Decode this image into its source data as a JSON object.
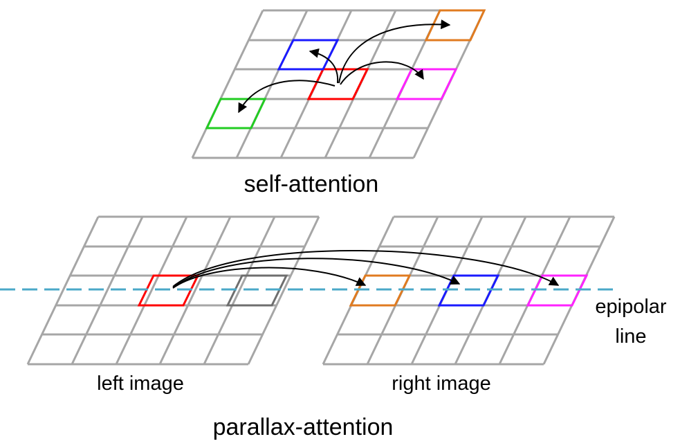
{
  "labels": {
    "self_attention": "self-attention",
    "parallax_attention": "parallax-attention",
    "left_image": "left image",
    "right_image": "right image",
    "epipolar_line_1": "epipolar",
    "epipolar_line_2": "line"
  },
  "colors": {
    "grid": "#a6a6a6",
    "query": "#ff0000",
    "orange": "#e07b20",
    "blue": "#1a1aff",
    "magenta": "#ff22ff",
    "green": "#22cc22",
    "epipolar": "#4aa8c8",
    "arrow": "#000000"
  }
}
